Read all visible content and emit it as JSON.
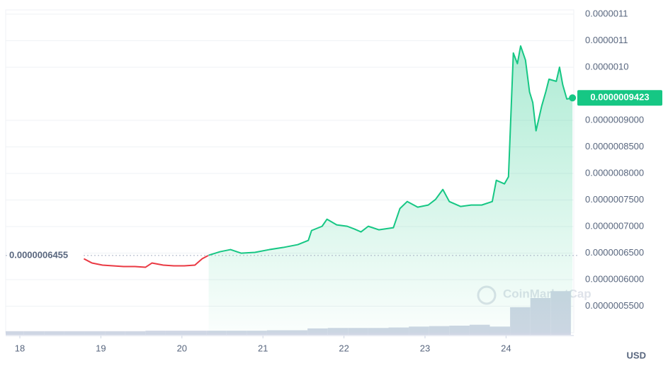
{
  "chart_data": {
    "type": "line",
    "currency": "USD",
    "watermark": "CoinMarketCap",
    "xlim": [
      17.825,
      24.836
    ],
    "xticks": [
      18,
      19,
      20,
      21,
      22,
      23,
      24
    ],
    "ylim": [
      5e-07,
      1.1e-06
    ],
    "yticks": [
      {
        "value": 1.1e-06,
        "label": "0.0000011"
      },
      {
        "value": 1.05e-06,
        "label": "0.0000011"
      },
      {
        "value": 1e-06,
        "label": "0.0000010"
      },
      {
        "value": 9e-07,
        "label": "0.0000009000"
      },
      {
        "value": 8.5e-07,
        "label": "0.0000008500"
      },
      {
        "value": 8e-07,
        "label": "0.0000008000"
      },
      {
        "value": 7.5e-07,
        "label": "0.0000007500"
      },
      {
        "value": 7e-07,
        "label": "0.0000007000"
      },
      {
        "value": 6.5e-07,
        "label": "0.0000006500"
      },
      {
        "value": 6e-07,
        "label": "0.0000006000"
      },
      {
        "value": 5.5e-07,
        "label": "0.0000005500"
      }
    ],
    "grid": true,
    "reference_line": {
      "value": 6.455e-07,
      "label": "0.0000006455"
    },
    "last_price": {
      "value": 9.423e-07,
      "label": "0.0000009423"
    },
    "x": [
      18.79,
      18.89,
      19.02,
      19.15,
      19.28,
      19.42,
      19.55,
      19.63,
      19.77,
      19.9,
      20.03,
      20.16,
      20.25,
      20.33,
      20.47,
      20.6,
      20.73,
      20.9,
      21.08,
      21.25,
      21.43,
      21.56,
      21.6,
      21.73,
      21.79,
      21.91,
      22.04,
      22.13,
      22.21,
      22.3,
      22.43,
      22.61,
      22.69,
      22.78,
      22.91,
      23.04,
      23.13,
      23.22,
      23.3,
      23.44,
      23.57,
      23.7,
      23.83,
      23.88,
      23.98,
      24.03,
      24.09,
      24.14,
      24.18,
      24.24,
      24.29,
      24.33,
      24.37,
      24.44,
      24.49,
      24.53,
      24.62,
      24.66,
      24.7,
      24.75,
      24.82
    ],
    "series": [
      {
        "color": "#ea3943",
        "values": [
          6.393e-07,
          6.313e-07,
          6.273e-07,
          6.26e-07,
          6.246e-07,
          6.246e-07,
          6.233e-07,
          6.313e-07,
          6.273e-07,
          6.26e-07,
          6.26e-07,
          6.273e-07,
          6.393e-07,
          6.459e-07,
          null,
          null,
          null,
          null,
          null,
          null,
          null,
          null,
          null,
          null,
          null,
          null,
          null,
          null,
          null,
          null,
          null,
          null,
          null,
          null,
          null,
          null,
          null,
          null,
          null,
          null,
          null,
          null,
          null,
          null,
          null,
          null,
          null,
          null,
          null,
          null,
          null,
          null,
          null,
          null,
          null,
          null,
          null,
          null,
          null,
          null,
          null
        ]
      },
      {
        "color": "#16c784",
        "values": [
          null,
          null,
          null,
          null,
          null,
          null,
          null,
          null,
          null,
          null,
          null,
          null,
          null,
          6.459e-07,
          6.526e-07,
          6.566e-07,
          6.499e-07,
          6.513e-07,
          6.566e-07,
          6.606e-07,
          6.659e-07,
          6.739e-07,
          6.925e-07,
          7.005e-07,
          7.138e-07,
          7.032e-07,
          7.005e-07,
          6.952e-07,
          6.899e-07,
          7.005e-07,
          6.939e-07,
          6.979e-07,
          7.338e-07,
          7.471e-07,
          7.365e-07,
          7.405e-07,
          7.511e-07,
          7.698e-07,
          7.471e-07,
          7.378e-07,
          7.405e-07,
          7.405e-07,
          7.471e-07,
          7.871e-07,
          7.804e-07,
          7.937e-07,
          1.0268e-06,
          1.0068e-06,
          1.0401e-06,
          1.0134e-06,
          9.535e-07,
          9.335e-07,
          8.803e-07,
          9.269e-07,
          9.535e-07,
          9.775e-07,
          9.735e-07,
          1.0001e-06,
          9.668e-07,
          9.402e-07,
          9.423e-07
        ]
      }
    ],
    "volume": {
      "color": "#cfd6e4",
      "ylim": [
        0,
        100
      ],
      "bins": [
        17.8,
        18.05,
        18.3,
        18.55,
        18.8,
        19.05,
        19.3,
        19.55,
        19.8,
        20.05,
        20.3,
        20.55,
        20.8,
        21.05,
        21.3,
        21.55,
        21.8,
        22.05,
        22.3,
        22.55,
        22.8,
        23.05,
        23.3,
        23.55,
        23.8,
        24.05,
        24.3,
        24.55,
        24.8
      ],
      "values": [
        8,
        8,
        8,
        8,
        8,
        8,
        8,
        9,
        9,
        9,
        9,
        9,
        9,
        10,
        10,
        14,
        15,
        15,
        15,
        16,
        18,
        19,
        20,
        22,
        18,
        60,
        80,
        95
      ]
    }
  }
}
